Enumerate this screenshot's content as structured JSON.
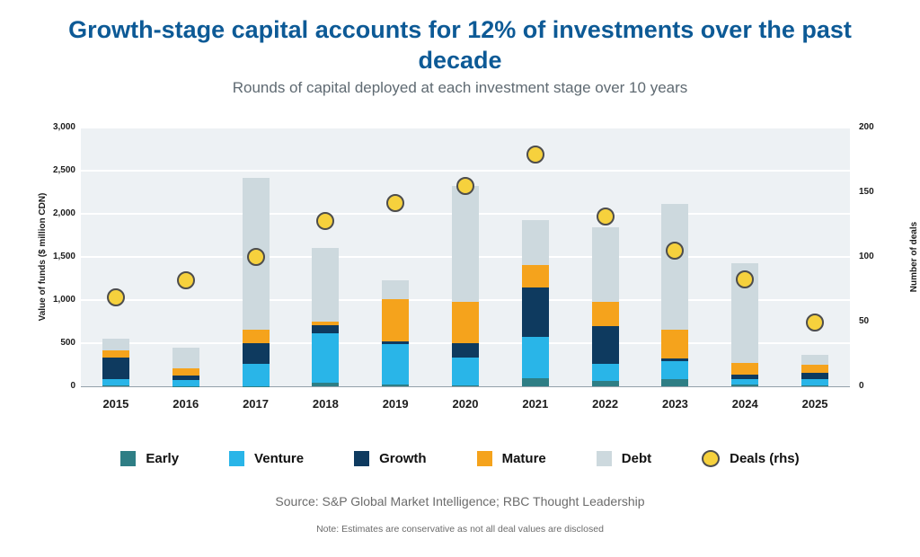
{
  "header": {
    "title": "Growth-stage capital accounts for 12% of investments over the past decade",
    "subtitle": "Rounds of capital deployed at each investment stage over 10 years"
  },
  "chart_data": {
    "type": "bar",
    "subtype": "stacked-bars-with-dot-series",
    "title": "Growth-stage capital accounts for 12% of investments over the past decade",
    "subtitle": "Rounds of capital deployed at each investment stage over 10 years",
    "categories": [
      "2015",
      "2016",
      "2017",
      "2018",
      "2019",
      "2020",
      "2021",
      "2022",
      "2023",
      "2024",
      "2025"
    ],
    "series": [
      {
        "name": "Early",
        "color": "#2e7e85",
        "values": [
          10,
          5,
          5,
          40,
          25,
          10,
          90,
          60,
          80,
          25,
          15
        ]
      },
      {
        "name": "Venture",
        "color": "#29b5e8",
        "values": [
          70,
          70,
          255,
          570,
          470,
          320,
          480,
          200,
          215,
          55,
          70
        ]
      },
      {
        "name": "Growth",
        "color": "#0e3a5f",
        "values": [
          255,
          50,
          240,
          95,
          25,
          170,
          580,
          440,
          25,
          60,
          70
        ]
      },
      {
        "name": "Mature",
        "color": "#f5a31c",
        "values": [
          80,
          80,
          160,
          45,
          490,
          480,
          260,
          280,
          340,
          130,
          100
        ]
      },
      {
        "name": "Debt",
        "color": "#cdd9de",
        "values": [
          140,
          245,
          1760,
          850,
          220,
          1340,
          520,
          860,
          1460,
          1160,
          105
        ]
      }
    ],
    "dots": {
      "name": "Deals (rhs)",
      "color": "#f6d13d",
      "outline_color": "#4d4d4d",
      "axis": "right",
      "values": [
        69,
        82,
        100,
        128,
        142,
        155,
        179,
        131,
        105,
        83,
        49
      ]
    },
    "left_axis": {
      "label": "Value of funds ($ million CDN)",
      "min": 0,
      "max": 3000,
      "tick_step": 500,
      "ticks": [
        "0",
        "500",
        "1,000",
        "1,500",
        "2,000",
        "2,500",
        "3,000"
      ]
    },
    "right_axis": {
      "label": "Number of deals",
      "min": 0,
      "max": 200,
      "tick_step": 50,
      "ticks": [
        "0",
        "50",
        "100",
        "150",
        "200"
      ]
    },
    "legend_position": "bottom",
    "grid": true,
    "plot_background": "#edf1f4",
    "title_color": "#0d5a96"
  },
  "footer": {
    "source": "Source: S&P Global Market Intelligence; RBC Thought Leadership",
    "note": "Note: Estimates are conservative as not all deal values are disclosed"
  }
}
